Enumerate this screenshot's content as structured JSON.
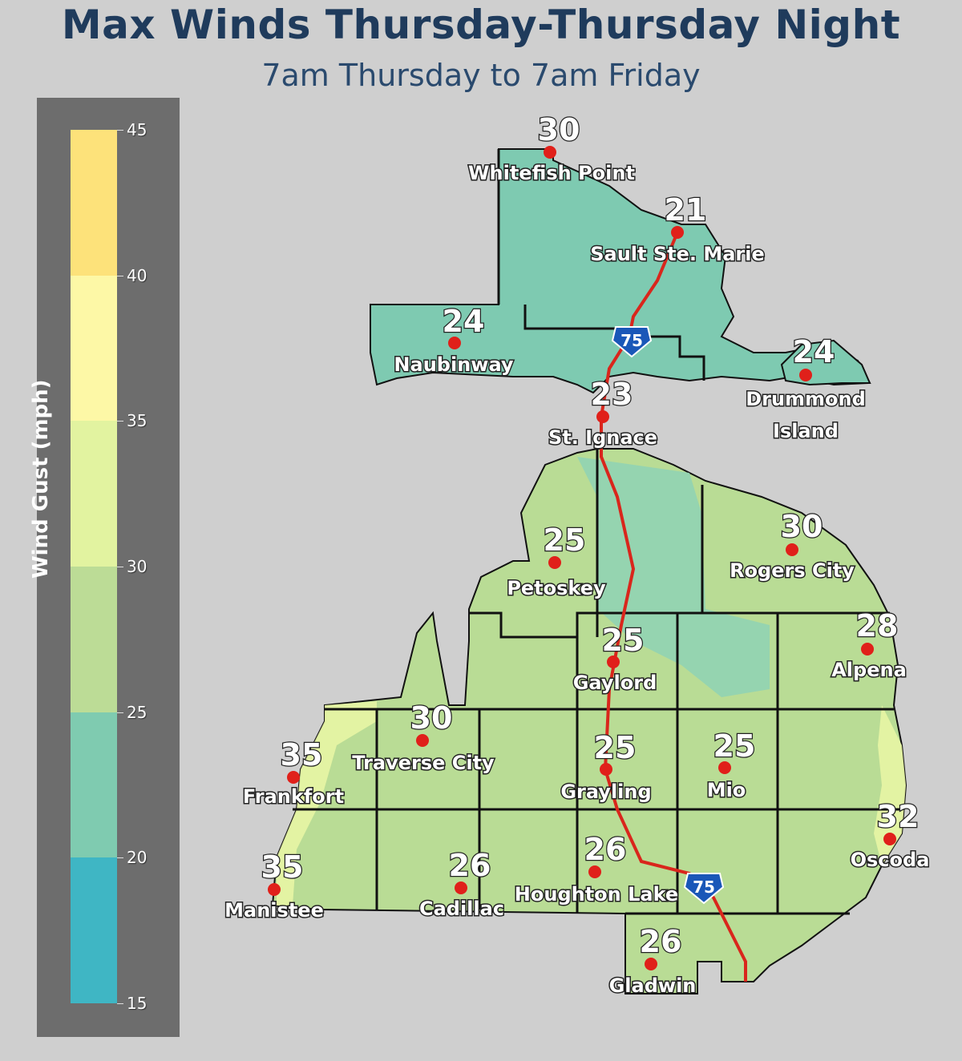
{
  "title": "Max Winds Thursday-Thursday Night",
  "subtitle": "7am Thursday to 7am Friday",
  "legend": {
    "title": "Wind Gust (mph)",
    "ticks": [
      "45",
      "40",
      "35",
      "30",
      "25",
      "20",
      "15"
    ],
    "bands": [
      {
        "from": 40,
        "to": 45,
        "color": "#fde27a"
      },
      {
        "from": 35,
        "to": 40,
        "color": "#fdf8a6"
      },
      {
        "from": 30,
        "to": 35,
        "color": "#e2f3a0"
      },
      {
        "from": 25,
        "to": 30,
        "color": "#bcdc96"
      },
      {
        "from": 20,
        "to": 25,
        "color": "#7fcbb0"
      },
      {
        "from": 15,
        "to": 20,
        "color": "#3fb6c4"
      }
    ]
  },
  "colors": {
    "land_upper": "#7ecab1",
    "land_lower": "#b9dc95",
    "coast": "#e8f5a4",
    "county_line": "#111111",
    "interstate": "#d9261c",
    "city_dot": "#e0201a",
    "shield": "#1a57b8"
  },
  "interstate_label": "75",
  "cities": [
    {
      "name": "Whitefish Point",
      "value": "30"
    },
    {
      "name": "Sault Ste. Marie",
      "value": "21"
    },
    {
      "name": "Naubinway",
      "value": "24"
    },
    {
      "name": "Drummond Island",
      "value": "24"
    },
    {
      "name": "St. Ignace",
      "value": "23"
    },
    {
      "name": "Petoskey",
      "value": "25"
    },
    {
      "name": "Rogers City",
      "value": "30"
    },
    {
      "name": "Alpena",
      "value": "28"
    },
    {
      "name": "Gaylord",
      "value": "25"
    },
    {
      "name": "Traverse City",
      "value": "30"
    },
    {
      "name": "Frankfort",
      "value": "35"
    },
    {
      "name": "Grayling",
      "value": "25"
    },
    {
      "name": "Mio",
      "value": "25"
    },
    {
      "name": "Oscoda",
      "value": "32"
    },
    {
      "name": "Manistee",
      "value": "35"
    },
    {
      "name": "Cadillac",
      "value": "26"
    },
    {
      "name": "Houghton Lake",
      "value": "26"
    },
    {
      "name": "Gladwin",
      "value": "26"
    }
  ]
}
